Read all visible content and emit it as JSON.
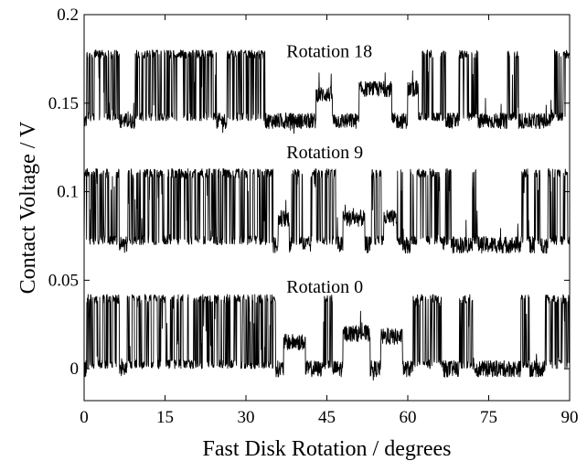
{
  "chart_data": {
    "type": "line",
    "xlabel": "Fast Disk Rotation / degrees",
    "ylabel": "Contact Voltage / V",
    "xlim": [
      0,
      90
    ],
    "ylim": [
      -0.018,
      0.2
    ],
    "xticks": [
      0,
      15,
      30,
      45,
      60,
      75,
      90
    ],
    "xtick_labels": [
      "0",
      "15",
      "30",
      "45",
      "60",
      "75",
      "90"
    ],
    "yticks": [
      0,
      0.05,
      0.1,
      0.15,
      0.2
    ],
    "ytick_labels": [
      "0",
      "0.05",
      "0.1",
      "0.15",
      "0.2"
    ],
    "grid": false,
    "legend": "none",
    "series": [
      {
        "name": "Rotation 18",
        "label_x": 37.5,
        "label_y": 0.176,
        "low": 0.14,
        "high": 0.18,
        "high_regions": [
          [
            0.5,
            6.5
          ],
          [
            9.5,
            12.5
          ],
          [
            12.5,
            19
          ],
          [
            19,
            21
          ],
          [
            21,
            24.5
          ],
          [
            26.5,
            33.5
          ],
          [
            62,
            67
          ],
          [
            69.5,
            73
          ],
          [
            78.5,
            80.5
          ],
          [
            86.5,
            90
          ]
        ],
        "bumps": [
          [
            43,
            46,
            0.155
          ],
          [
            51,
            57,
            0.158
          ],
          [
            60,
            62,
            0.158
          ]
        ]
      },
      {
        "name": "Rotation 9",
        "label_x": 37.5,
        "label_y": 0.119,
        "low": 0.07,
        "high": 0.113,
        "high_regions": [
          [
            0,
            6.5
          ],
          [
            8,
            11
          ],
          [
            11,
            19
          ],
          [
            19,
            24
          ],
          [
            24,
            30
          ],
          [
            30,
            35
          ],
          [
            38.5,
            40.5
          ],
          [
            42,
            47
          ],
          [
            53,
            55.5
          ],
          [
            58,
            59
          ],
          [
            60.5,
            66.5
          ],
          [
            67,
            68
          ],
          [
            72,
            73
          ],
          [
            81,
            82.5
          ],
          [
            83.5,
            84.5
          ],
          [
            86,
            90
          ]
        ],
        "bumps": [
          [
            36,
            38,
            0.085
          ],
          [
            48,
            52,
            0.085
          ],
          [
            55.5,
            58,
            0.085
          ]
        ]
      },
      {
        "name": "Rotation 0",
        "label_x": 37.5,
        "label_y": 0.043,
        "low": 0.0,
        "high": 0.042,
        "high_regions": [
          [
            0.5,
            6.5
          ],
          [
            8,
            11.5
          ],
          [
            11.5,
            19
          ],
          [
            19,
            24
          ],
          [
            24,
            30
          ],
          [
            30,
            35.5
          ],
          [
            44,
            46
          ],
          [
            61,
            66.5
          ],
          [
            69.5,
            72
          ],
          [
            81,
            82.5
          ],
          [
            85.5,
            90
          ]
        ],
        "bumps": [
          [
            37,
            41,
            0.015
          ],
          [
            48,
            53,
            0.02
          ],
          [
            55,
            59,
            0.018
          ]
        ]
      }
    ]
  }
}
